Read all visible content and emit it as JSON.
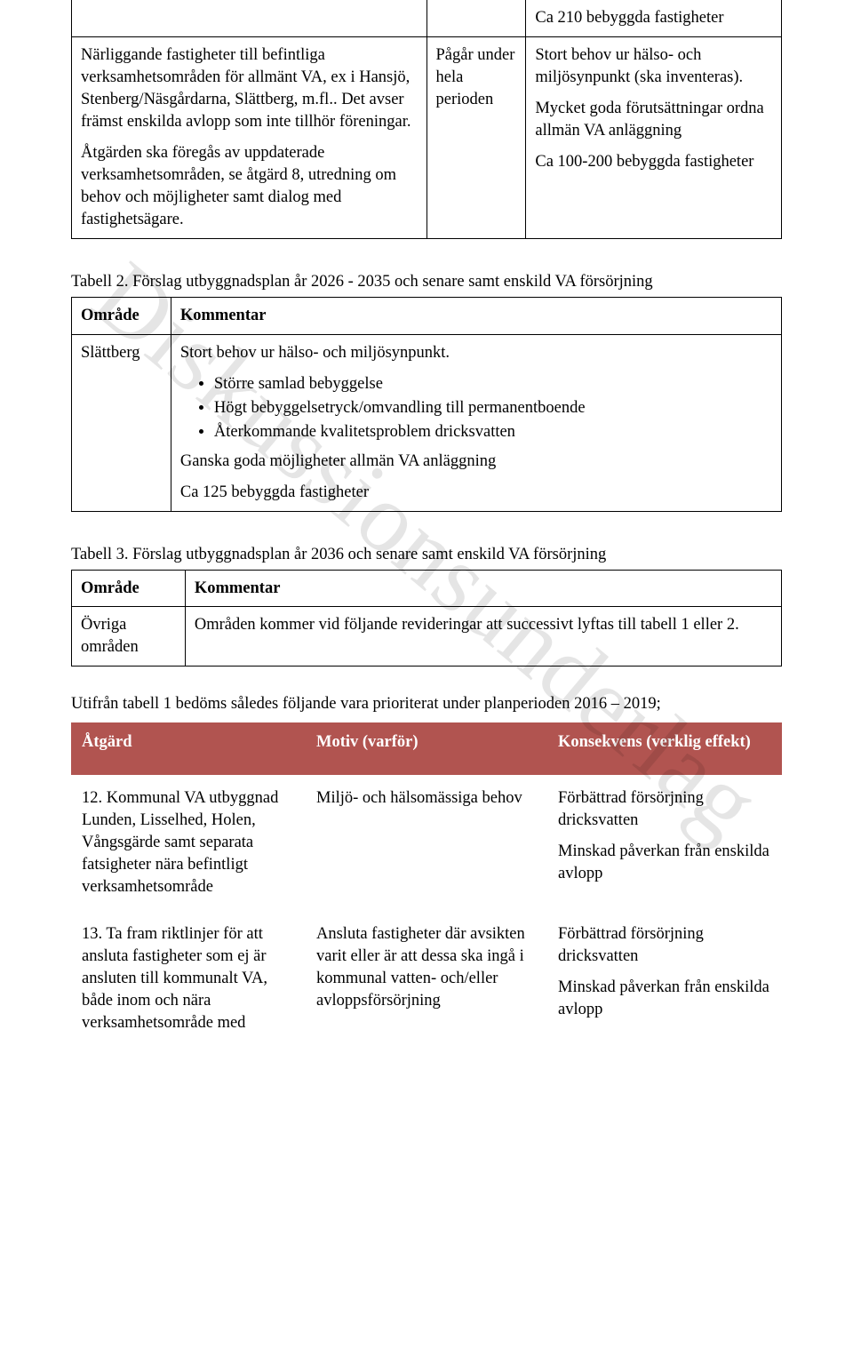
{
  "watermark": "Diskussionsunderlag",
  "table1": {
    "row0_col3": "Ca 210 bebyggda fastigheter",
    "row1_col1_p1": "Närliggande fastigheter till befintliga verksamhetsområden för allmänt VA, ex i Hansjö, Stenberg/Näsgårdarna, Slättberg, m.fl.. Det avser främst enskilda avlopp som inte tillhör föreningar.",
    "row1_col1_p2": "Åtgärden ska föregås av uppdaterade verksamhetsområden, se åtgärd 8, utredning om behov och möjligheter samt dialog med fastighetsägare.",
    "row1_col2": "Pågår under hela perioden",
    "row1_col3_p1": "Stort behov ur hälso- och miljösynpunkt (ska inventeras).",
    "row1_col3_p2": "Mycket goda förutsättningar ordna allmän VA anläggning",
    "row1_col3_p3": "Ca  100-200 bebyggda fastigheter"
  },
  "table2": {
    "caption": "Tabell 2. Förslag utbyggnadsplan år 2026 - 2035 och senare samt enskild VA försörjning",
    "h1": "Område",
    "h2": "Kommentar",
    "r1c1": "Slättberg",
    "r1c2_intro": "Stort behov ur hälso- och miljösynpunkt.",
    "r1c2_b1": "Större samlad bebyggelse",
    "r1c2_b2": "Högt bebyggelsetryck/omvandling till permanentboende",
    "r1c2_b3": "Återkommande kvalitetsproblem dricksvatten",
    "r1c2_p2": "Ganska goda möjligheter allmän VA anläggning",
    "r1c2_p3": "Ca 125 bebyggda fastigheter"
  },
  "table3": {
    "caption": "Tabell 3. Förslag utbyggnadsplan år 2036 och senare samt enskild VA försörjning",
    "h1": "Område",
    "h2": "Kommentar",
    "r1c1": "Övriga områden",
    "r1c2": "Områden kommer vid följande revideringar att successivt lyftas till tabell 1 eller 2."
  },
  "priority": {
    "intro": "Utifrån tabell 1 bedöms således följande vara prioriterat under planperioden 2016 – 2019;",
    "hA": "Åtgärd",
    "hB": "Motiv (varför)",
    "hC": "Konsekvens (verklig effekt)",
    "header_bg": "#b15450",
    "header_color": "#ffffff",
    "r1": {
      "a": "12. Kommunal VA utbyggnad Lunden, Lisselhed, Holen, Vångsgärde samt separata fatsigheter nära befintligt verksamhetsområde",
      "b": "Miljö- och hälsomässiga behov",
      "c1": "Förbättrad försörjning dricksvatten",
      "c2": "Minskad påverkan från enskilda avlopp"
    },
    "r2": {
      "a": "13. Ta fram riktlinjer för att ansluta fastigheter som ej är ansluten till kommunalt VA, både inom och nära verksamhetsområde med",
      "b": "Ansluta fastigheter där avsikten varit eller är att dessa ska ingå i kommunal vatten- och/eller avloppsförsörjning",
      "c1": "Förbättrad försörjning dricksvatten",
      "c2": "Minskad påverkan från enskilda avlopp"
    }
  }
}
